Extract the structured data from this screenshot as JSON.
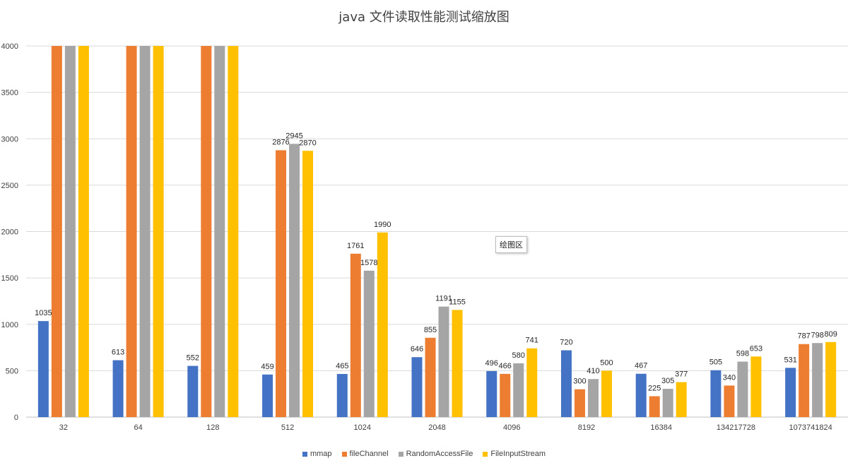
{
  "chart_data": {
    "type": "bar",
    "title": "java 文件读取性能测试缩放图",
    "xlabel": "",
    "ylabel": "",
    "ylim": [
      0,
      4000
    ],
    "yticks": [
      0,
      500,
      1000,
      1500,
      2000,
      2500,
      3000,
      3500,
      4000
    ],
    "grid": true,
    "legend_position": "bottom",
    "categories": [
      "32",
      "64",
      "128",
      "512",
      "1024",
      "2048",
      "4096",
      "8192",
      "16384",
      "134217728",
      "1073741824"
    ],
    "series": [
      {
        "name": "mmap",
        "color": "#4472c4",
        "values": [
          1035,
          613,
          552,
          459,
          465,
          646,
          496,
          720,
          467,
          505,
          531
        ],
        "labels": [
          "1035",
          "613",
          "552",
          "459",
          "465",
          "646",
          "496",
          "720",
          "467",
          "505",
          "531"
        ]
      },
      {
        "name": "fileChannel",
        "color": "#ed7d31",
        "values": [
          4000,
          4000,
          4000,
          2876,
          1761,
          855,
          466,
          300,
          225,
          340,
          787
        ],
        "labels": [
          "",
          "",
          "",
          "2876",
          "1761",
          "855",
          "466",
          "300",
          "225",
          "340",
          "787"
        ]
      },
      {
        "name": "RandomAccessFile",
        "color": "#a5a5a5",
        "values": [
          4000,
          4000,
          4000,
          2945,
          1578,
          1191,
          580,
          410,
          305,
          598,
          798
        ],
        "labels": [
          "",
          "",
          "",
          "2945",
          "1578",
          "1191",
          "580",
          "410",
          "305",
          "598",
          "798"
        ]
      },
      {
        "name": "FileInputStream",
        "color": "#ffc000",
        "values": [
          4000,
          4000,
          4000,
          2870,
          1990,
          1155,
          741,
          500,
          377,
          653,
          809
        ],
        "labels": [
          "",
          "",
          "",
          "2870",
          "1990",
          "1155",
          "741",
          "500",
          "377",
          "653",
          "809"
        ]
      }
    ]
  },
  "tooltip": {
    "text": "绘图区"
  }
}
